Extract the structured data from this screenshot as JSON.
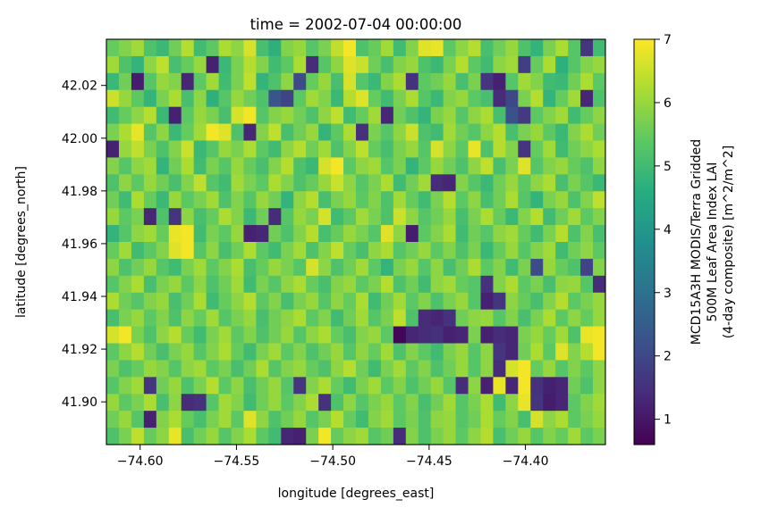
{
  "chart_data": {
    "type": "heatmap",
    "title": "time = 2002-07-04 00:00:00",
    "xlabel": "longitude [degrees_east]",
    "ylabel": "latitude [degrees_north]",
    "xlim": [
      -74.6175,
      -74.3585
    ],
    "ylim": [
      41.8838,
      42.0375
    ],
    "x_ticks": [
      -74.6,
      -74.55,
      -74.5,
      -74.45,
      -74.4
    ],
    "x_tick_labels": [
      "−74.60",
      "−74.55",
      "−74.50",
      "−74.45",
      "−74.40"
    ],
    "y_ticks": [
      41.9,
      41.92,
      41.94,
      41.96,
      41.98,
      42.0,
      42.02
    ],
    "y_tick_labels": [
      "41.90",
      "41.92",
      "41.94",
      "41.96",
      "41.98",
      "42.00",
      "42.02"
    ],
    "colorbar": {
      "label_lines": [
        "MCD15A3H MODIS/Terra Gridded",
        "500M Leaf Area Index LAI",
        "(4-day composite) [m^2/m^2]"
      ],
      "range": [
        0.6,
        7.0
      ],
      "ticks": [
        1,
        2,
        3,
        4,
        5,
        6,
        7
      ],
      "tick_labels": [
        "1",
        "2",
        "3",
        "4",
        "5",
        "6",
        "7"
      ],
      "colormap": "viridis"
    },
    "grid": {
      "rows": 24,
      "cols": 40,
      "row_order": "north_to_south",
      "values": [
        [
          5.5,
          5.8,
          6.1,
          5.2,
          4.9,
          5.6,
          6.3,
          5.0,
          5.4,
          6.2,
          5.9,
          6.6,
          5.1,
          4.7,
          5.8,
          6.0,
          5.3,
          5.7,
          6.4,
          6.9,
          5.2,
          5.5,
          6.1,
          5.0,
          5.8,
          6.7,
          6.8,
          5.4,
          5.9,
          6.3,
          5.1,
          5.6,
          6.0,
          5.2,
          4.8,
          5.7,
          6.2,
          5.3,
          1.6,
          5.0
        ],
        [
          6.1,
          5.2,
          4.8,
          5.9,
          6.4,
          5.1,
          5.5,
          6.0,
          1.2,
          4.9,
          5.7,
          6.3,
          5.8,
          5.0,
          5.4,
          6.2,
          1.4,
          5.3,
          5.9,
          6.7,
          6.5,
          5.6,
          5.1,
          5.8,
          6.0,
          5.2,
          4.9,
          5.7,
          6.3,
          5.4,
          5.0,
          5.9,
          6.1,
          1.8,
          5.5,
          6.2,
          4.7,
          5.3,
          5.8,
          6.0
        ],
        [
          4.9,
          5.6,
          1.1,
          5.3,
          6.0,
          5.8,
          1.3,
          5.4,
          6.1,
          5.0,
          5.7,
          6.4,
          4.8,
          5.2,
          5.9,
          2.1,
          5.5,
          6.0,
          5.1,
          6.6,
          5.3,
          4.9,
          5.8,
          6.2,
          1.5,
          5.4,
          5.6,
          6.0,
          5.1,
          5.7,
          1.6,
          1.2,
          5.3,
          6.1,
          5.8,
          5.0,
          4.9,
          5.6,
          6.2,
          5.4
        ],
        [
          6.5,
          6.0,
          5.4,
          4.8,
          5.7,
          6.2,
          5.1,
          5.9,
          4.7,
          5.3,
          6.0,
          5.6,
          5.2,
          2.3,
          1.9,
          5.4,
          6.1,
          5.8,
          4.9,
          6.3,
          6.7,
          5.5,
          5.0,
          5.7,
          6.2,
          5.3,
          4.9,
          5.8,
          6.0,
          5.4,
          5.1,
          1.4,
          2.0,
          5.7,
          6.3,
          4.8,
          5.5,
          6.1,
          1.3,
          5.2
        ],
        [
          5.0,
          5.5,
          5.9,
          6.3,
          4.9,
          1.2,
          5.4,
          6.0,
          5.7,
          5.1,
          6.6,
          6.9,
          5.3,
          5.8,
          6.0,
          5.6,
          5.2,
          5.9,
          6.4,
          5.0,
          5.5,
          6.1,
          1.3,
          5.6,
          5.2,
          4.8,
          5.7,
          6.0,
          5.3,
          5.9,
          6.2,
          5.1,
          2.2,
          1.7,
          5.4,
          5.8,
          6.1,
          5.0,
          5.5,
          5.9
        ],
        [
          5.7,
          6.2,
          6.8,
          5.3,
          5.9,
          4.9,
          5.5,
          6.1,
          6.9,
          6.7,
          5.2,
          1.3,
          5.8,
          6.4,
          5.1,
          5.6,
          6.0,
          4.8,
          5.4,
          6.2,
          1.5,
          5.7,
          5.3,
          5.9,
          6.5,
          5.2,
          5.0,
          6.1,
          5.6,
          5.3,
          5.9,
          6.3,
          5.1,
          5.7,
          6.0,
          5.4,
          4.9,
          5.8,
          6.2,
          5.6
        ],
        [
          1.2,
          6.0,
          6.4,
          5.7,
          5.2,
          5.8,
          6.5,
          4.9,
          5.3,
          6.0,
          5.7,
          6.2,
          5.4,
          5.0,
          5.9,
          6.3,
          5.6,
          6.1,
          5.2,
          5.8,
          6.4,
          5.5,
          5.1,
          5.7,
          6.0,
          5.3,
          6.6,
          5.9,
          5.4,
          6.8,
          5.2,
          6.3,
          5.8,
          1.6,
          5.5,
          6.1,
          5.0,
          5.6,
          5.9,
          6.2
        ],
        [
          5.8,
          5.3,
          5.9,
          6.1,
          4.8,
          5.6,
          6.2,
          5.0,
          5.7,
          5.3,
          6.0,
          5.5,
          5.1,
          5.8,
          6.3,
          5.2,
          4.9,
          6.6,
          6.9,
          5.4,
          5.9,
          6.1,
          5.3,
          5.7,
          4.8,
          5.4,
          6.0,
          5.6,
          5.2,
          5.9,
          6.4,
          5.1,
          5.7,
          6.7,
          5.3,
          5.8,
          6.0,
          5.5,
          5.2,
          5.9
        ],
        [
          5.2,
          5.9,
          5.4,
          6.0,
          5.6,
          5.1,
          5.8,
          6.4,
          5.3,
          5.0,
          6.1,
          5.7,
          5.4,
          6.2,
          5.8,
          5.2,
          5.5,
          6.0,
          6.5,
          5.9,
          5.3,
          5.7,
          6.2,
          5.0,
          5.6,
          6.1,
          1.4,
          1.3,
          5.8,
          5.3,
          4.9,
          5.6,
          6.0,
          5.4,
          5.9,
          6.2,
          5.1,
          5.7,
          5.3,
          4.9
        ],
        [
          5.6,
          5.0,
          6.2,
          5.5,
          4.9,
          6.0,
          5.4,
          5.7,
          6.1,
          5.2,
          5.8,
          5.3,
          6.0,
          5.6,
          4.8,
          5.9,
          6.3,
          5.1,
          5.7,
          6.0,
          5.4,
          5.8,
          5.2,
          6.1,
          5.5,
          5.0,
          5.7,
          6.3,
          5.4,
          5.9,
          5.1,
          5.6,
          6.2,
          5.3,
          4.8,
          5.7,
          6.0,
          5.2,
          5.8,
          6.4
        ],
        [
          6.0,
          5.4,
          5.7,
          1.3,
          5.2,
          1.6,
          5.9,
          5.1,
          5.5,
          6.2,
          5.8,
          4.9,
          5.6,
          1.4,
          5.3,
          6.0,
          5.7,
          6.6,
          5.0,
          5.4,
          6.1,
          5.7,
          5.2,
          6.5,
          5.9,
          5.3,
          5.6,
          6.0,
          5.1,
          5.7,
          6.2,
          5.5,
          4.9,
          5.8,
          6.3,
          5.0,
          5.6,
          6.1,
          5.4,
          5.8
        ],
        [
          4.8,
          5.3,
          5.9,
          6.1,
          5.5,
          6.8,
          6.9,
          5.0,
          5.7,
          5.4,
          6.0,
          1.2,
          1.3,
          5.6,
          5.2,
          5.8,
          6.3,
          5.1,
          5.5,
          6.0,
          5.7,
          5.3,
          6.7,
          5.9,
          1.1,
          5.4,
          5.8,
          6.2,
          5.0,
          5.6,
          5.3,
          5.9,
          6.1,
          5.5,
          5.0,
          5.7,
          6.3,
          5.2,
          5.8,
          5.1
        ],
        [
          5.5,
          6.1,
          5.0,
          5.4,
          5.8,
          6.7,
          6.9,
          5.3,
          5.9,
          5.1,
          5.6,
          6.2,
          5.4,
          5.0,
          5.7,
          6.1,
          5.2,
          5.8,
          6.4,
          5.5,
          5.1,
          5.9,
          6.2,
          5.3,
          5.6,
          6.0,
          5.4,
          5.8,
          5.2,
          5.7,
          4.9,
          5.5,
          6.0,
          5.3,
          5.8,
          6.1,
          5.0,
          5.6,
          5.9,
          5.4
        ],
        [
          5.9,
          5.2,
          5.6,
          6.0,
          5.3,
          5.0,
          5.7,
          6.1,
          5.4,
          5.8,
          6.2,
          5.1,
          5.5,
          6.0,
          5.7,
          5.3,
          6.6,
          5.9,
          5.2,
          5.6,
          6.1,
          5.4,
          4.8,
          5.7,
          6.0,
          5.3,
          5.9,
          5.1,
          5.6,
          6.2,
          5.4,
          5.8,
          5.0,
          5.7,
          2.1,
          6.0,
          5.5,
          5.2,
          1.9,
          5.8
        ],
        [
          5.3,
          5.8,
          6.2,
          5.1,
          5.7,
          6.0,
          5.4,
          5.9,
          5.2,
          5.6,
          6.1,
          5.0,
          5.7,
          5.3,
          5.9,
          6.2,
          5.5,
          5.1,
          5.8,
          6.0,
          5.4,
          5.7,
          6.3,
          5.2,
          5.6,
          5.0,
          5.9,
          6.1,
          5.5,
          5.3,
          1.5,
          5.8,
          6.2,
          5.4,
          5.7,
          5.1,
          5.9,
          6.0,
          5.3,
          1.4
        ],
        [
          6.2,
          5.6,
          5.3,
          5.8,
          6.0,
          5.1,
          5.6,
          6.2,
          5.0,
          5.5,
          5.9,
          6.3,
          5.4,
          5.8,
          5.1,
          5.7,
          6.0,
          5.3,
          5.9,
          5.5,
          6.2,
          5.0,
          5.6,
          6.1,
          5.4,
          5.8,
          5.2,
          5.7,
          6.0,
          5.3,
          1.2,
          1.6,
          5.9,
          5.5,
          5.1,
          5.8,
          6.3,
          5.4,
          5.7,
          6.0
        ],
        [
          5.1,
          5.7,
          6.0,
          5.4,
          5.8,
          5.2,
          5.9,
          5.5,
          6.1,
          5.3,
          5.7,
          6.0,
          5.1,
          5.6,
          5.9,
          6.2,
          5.4,
          5.8,
          5.0,
          5.6,
          6.1,
          5.3,
          5.7,
          6.4,
          5.2,
          1.4,
          1.3,
          1.5,
          5.6,
          5.9,
          6.0,
          5.3,
          5.8,
          5.1,
          5.7,
          6.2,
          5.4,
          5.9,
          5.5,
          6.0
        ],
        [
          6.6,
          6.9,
          5.7,
          5.2,
          5.9,
          6.3,
          5.5,
          5.0,
          5.7,
          6.1,
          5.4,
          5.8,
          5.2,
          5.6,
          6.0,
          5.3,
          5.9,
          6.2,
          5.5,
          5.1,
          5.8,
          6.0,
          5.4,
          0.7,
          1.3,
          1.4,
          1.5,
          1.2,
          1.3,
          5.7,
          1.2,
          1.4,
          1.3,
          5.7,
          6.0,
          5.5,
          6.1,
          5.2,
          6.8,
          6.9
        ],
        [
          5.4,
          5.9,
          6.3,
          5.6,
          5.1,
          5.7,
          6.0,
          5.3,
          5.8,
          6.2,
          5.5,
          5.0,
          5.7,
          6.1,
          5.4,
          5.8,
          5.2,
          5.6,
          6.0,
          5.3,
          5.9,
          5.5,
          6.1,
          5.2,
          5.8,
          5.4,
          5.0,
          5.7,
          6.0,
          5.3,
          5.9,
          1.6,
          1.3,
          5.6,
          6.2,
          5.4,
          6.7,
          5.8,
          6.3,
          6.9
        ],
        [
          5.7,
          5.2,
          5.5,
          6.0,
          5.8,
          5.3,
          5.9,
          6.1,
          5.4,
          5.7,
          5.1,
          5.6,
          6.2,
          5.3,
          5.8,
          6.0,
          5.5,
          5.2,
          5.9,
          6.3,
          5.6,
          5.0,
          5.7,
          6.1,
          5.4,
          5.8,
          5.2,
          5.6,
          6.0,
          5.3,
          5.9,
          1.4,
          6.6,
          6.9,
          5.5,
          6.0,
          5.3,
          5.8,
          5.4,
          5.9
        ],
        [
          5.3,
          5.8,
          6.1,
          1.6,
          5.6,
          6.0,
          5.2,
          5.7,
          6.3,
          5.4,
          5.9,
          5.1,
          5.6,
          6.0,
          5.3,
          1.6,
          5.8,
          6.2,
          5.5,
          5.0,
          5.7,
          6.1,
          5.4,
          5.8,
          5.2,
          5.6,
          6.0,
          5.3,
          1.4,
          5.9,
          1.2,
          6.8,
          1.3,
          6.9,
          1.5,
          1.2,
          1.3,
          5.6,
          5.2,
          5.9
        ],
        [
          6.0,
          5.4,
          5.7,
          6.2,
          5.1,
          5.9,
          1.4,
          1.5,
          5.3,
          6.1,
          5.8,
          5.0,
          5.6,
          6.0,
          5.4,
          5.8,
          6.2,
          1.5,
          5.2,
          5.9,
          5.3,
          5.7,
          6.0,
          5.4,
          5.8,
          5.1,
          5.6,
          6.1,
          5.3,
          5.7,
          6.2,
          5.0,
          5.9,
          6.8,
          1.6,
          1.1,
          1.3,
          5.4,
          5.8,
          6.1
        ],
        [
          5.6,
          6.0,
          5.3,
          1.2,
          5.8,
          6.2,
          5.5,
          5.1,
          5.7,
          6.1,
          5.4,
          6.7,
          5.9,
          5.2,
          5.6,
          6.0,
          5.3,
          5.7,
          6.3,
          5.5,
          5.0,
          5.8,
          6.1,
          5.4,
          5.7,
          5.2,
          5.9,
          6.0,
          5.3,
          5.6,
          6.2,
          5.5,
          5.8,
          5.1,
          6.6,
          5.9,
          6.2,
          5.4,
          5.7,
          6.0
        ],
        [
          5.2,
          5.7,
          6.4,
          5.5,
          5.9,
          6.8,
          5.1,
          5.6,
          6.0,
          5.3,
          5.8,
          6.2,
          5.4,
          5.0,
          1.3,
          1.2,
          5.7,
          6.9,
          5.5,
          5.9,
          6.1,
          5.3,
          5.6,
          1.4,
          5.8,
          5.2,
          5.7,
          6.0,
          5.4,
          5.9,
          6.3,
          5.1,
          5.6,
          6.0,
          5.3,
          5.8,
          5.5,
          6.1,
          5.4,
          5.7
        ]
      ]
    }
  }
}
